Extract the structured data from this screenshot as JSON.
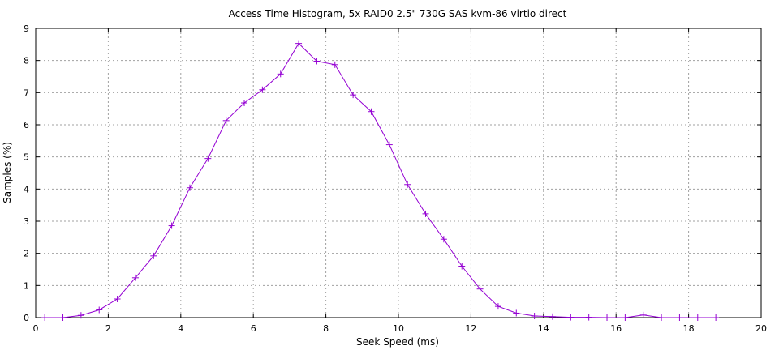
{
  "chart_data": {
    "type": "line",
    "title": "Access Time Histogram, 5x RAID0 2.5\" 730G SAS kvm-86 virtio direct",
    "xlabel": "Seek Speed (ms)",
    "ylabel": "Samples (%)",
    "xlim": [
      0,
      20
    ],
    "ylim": [
      0,
      9
    ],
    "xticks": [
      0,
      2,
      4,
      6,
      8,
      10,
      12,
      14,
      16,
      18,
      20
    ],
    "yticks": [
      0,
      1,
      2,
      3,
      4,
      5,
      6,
      7,
      8,
      9
    ],
    "grid": true,
    "marker": "plus",
    "series": [
      {
        "color": "#9400d3",
        "x": [
          0.25,
          0.75,
          1.25,
          1.75,
          2.25,
          2.75,
          3.25,
          3.75,
          4.25,
          4.75,
          5.25,
          5.75,
          6.25,
          6.75,
          7.25,
          7.75,
          8.25,
          8.75,
          9.25,
          9.75,
          10.25,
          10.75,
          11.25,
          11.75,
          12.25,
          12.75,
          13.25,
          13.75,
          14.25,
          14.75,
          15.25,
          15.75,
          16.25,
          16.75,
          17.25,
          17.75,
          18.25,
          18.75
        ],
        "y": [
          0.0,
          0.0,
          0.07,
          0.24,
          0.58,
          1.24,
          1.92,
          2.86,
          4.04,
          4.95,
          6.13,
          6.68,
          7.09,
          7.58,
          8.53,
          7.98,
          7.87,
          6.93,
          6.41,
          5.38,
          4.14,
          3.23,
          2.44,
          1.6,
          0.89,
          0.35,
          0.14,
          0.05,
          0.03,
          0.01,
          0.01,
          0.0,
          0.0,
          0.08,
          0.0,
          0.0,
          0.0,
          0.0
        ]
      }
    ]
  }
}
